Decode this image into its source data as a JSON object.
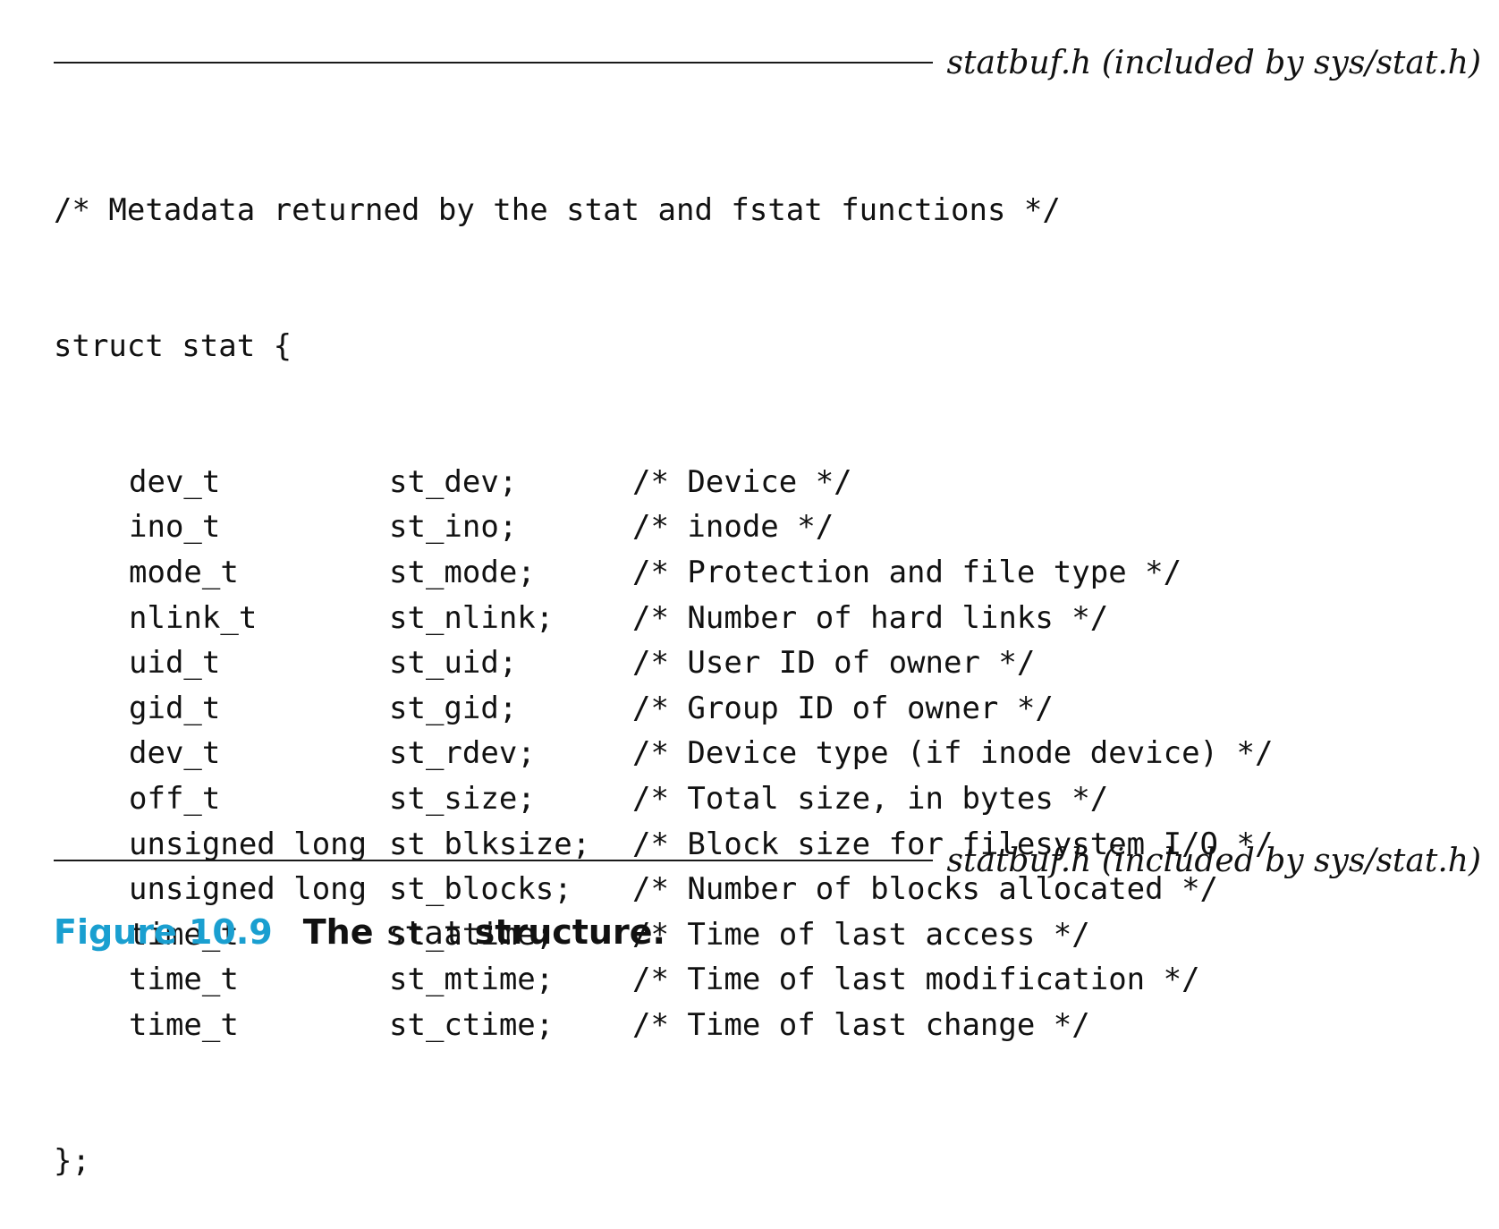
{
  "header": {
    "file_label": "statbuf.h (included by sys/stat.h)"
  },
  "code": {
    "comment_line": "/* Metadata returned by the stat and fstat functions */",
    "struct_open": "struct stat {",
    "fields": [
      {
        "type": "dev_t",
        "name": "st_dev;",
        "comment": "/* Device */"
      },
      {
        "type": "ino_t",
        "name": "st_ino;",
        "comment": "/* inode */"
      },
      {
        "type": "mode_t",
        "name": "st_mode;",
        "comment": "/* Protection and file type */"
      },
      {
        "type": "nlink_t",
        "name": "st_nlink;",
        "comment": "/* Number of hard links */"
      },
      {
        "type": "uid_t",
        "name": "st_uid;",
        "comment": "/* User ID of owner */"
      },
      {
        "type": "gid_t",
        "name": "st_gid;",
        "comment": "/* Group ID of owner */"
      },
      {
        "type": "dev_t",
        "name": "st_rdev;",
        "comment": "/* Device type (if inode device) */"
      },
      {
        "type": "off_t",
        "name": "st_size;",
        "comment": "/* Total size, in bytes */"
      },
      {
        "type": "unsigned long",
        "name": "st_blksize;",
        "comment": "/* Block size for filesystem I/O */"
      },
      {
        "type": "unsigned long",
        "name": "st_blocks;",
        "comment": "/* Number of blocks allocated */"
      },
      {
        "type": "time_t",
        "name": "st_atime;",
        "comment": "/* Time of last access */"
      },
      {
        "type": "time_t",
        "name": "st_mtime;",
        "comment": "/* Time of last modification */"
      },
      {
        "type": "time_t",
        "name": "st_ctime;",
        "comment": "/* Time of last change */"
      }
    ],
    "struct_close": "};"
  },
  "footer": {
    "file_label": "statbuf.h (included by sys/stat.h)"
  },
  "caption": {
    "figure_number": "Figure 10.9",
    "text_before": "The ",
    "code_word": "stat",
    "text_after": " structure."
  },
  "colors": {
    "figure_number": "#1a9fd0",
    "text": "#111111"
  }
}
